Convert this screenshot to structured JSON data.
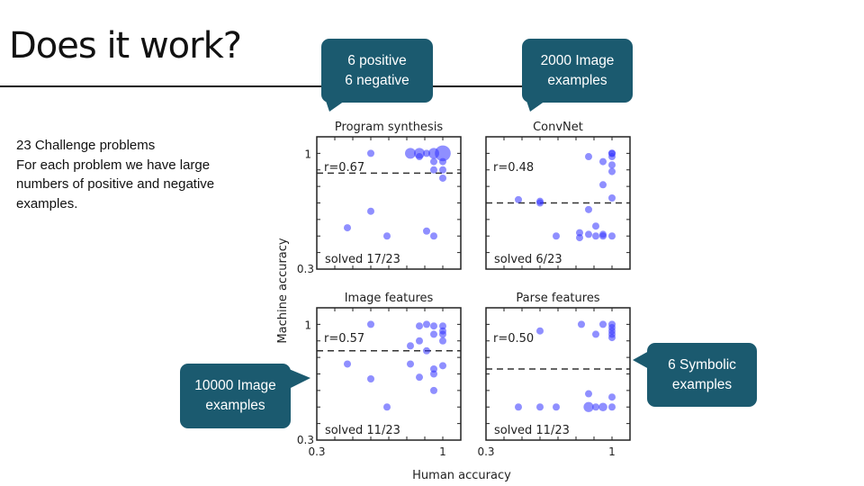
{
  "slide": {
    "title": "Does it work?",
    "body_lines": [
      "23 Challenge problems",
      "For each problem we have large",
      "numbers of positive and negative",
      "examples."
    ]
  },
  "callouts": [
    {
      "lines": [
        "6 positive",
        "6 negative"
      ]
    },
    {
      "lines": [
        "2000 Image",
        "examples"
      ]
    },
    {
      "lines": [
        "10000 Image",
        "examples"
      ]
    },
    {
      "lines": [
        "6 Symbolic",
        "examples"
      ]
    }
  ],
  "colors": {
    "callout": "#1b5a6f",
    "points": "#3333ff",
    "text": "#111111"
  },
  "chart_data": {
    "type": "scatter",
    "xlabel": "Human accuracy",
    "ylabel": "Machine accuracy",
    "xlim": [
      0.3,
      1.1
    ],
    "ylim": [
      0.3,
      1.1
    ],
    "xticks_labels": [
      "0.3",
      "1"
    ],
    "yticks_labels": [
      "1",
      "0.3"
    ],
    "panels": [
      {
        "title": "Program synthesis",
        "r_label": "r=0.67",
        "solved_label": "solved 17/23",
        "threshold": 0.88,
        "points": [
          [
            0.6,
            1,
            1
          ],
          [
            0.82,
            1,
            1.5
          ],
          [
            0.87,
            1,
            1.5
          ],
          [
            0.87,
            0.98,
            1
          ],
          [
            0.91,
            1,
            1
          ],
          [
            0.95,
            1,
            1.5
          ],
          [
            1,
            1,
            2.2
          ],
          [
            0.95,
            0.95,
            1
          ],
          [
            1,
            0.95,
            1
          ],
          [
            0.95,
            0.9,
            1
          ],
          [
            1,
            0.9,
            1
          ],
          [
            1,
            0.85,
            1
          ],
          [
            0.6,
            0.65,
            1
          ],
          [
            0.47,
            0.55,
            1
          ],
          [
            0.69,
            0.5,
            1
          ],
          [
            0.91,
            0.53,
            1
          ],
          [
            0.95,
            0.5,
            1
          ]
        ]
      },
      {
        "title": "ConvNet",
        "r_label": "r=0.48",
        "solved_label": "solved 6/23",
        "threshold": 0.7,
        "points": [
          [
            0.87,
            0.98,
            1
          ],
          [
            1,
            1,
            1
          ],
          [
            1,
            1,
            1
          ],
          [
            1,
            0.98,
            1
          ],
          [
            0.95,
            0.95,
            1
          ],
          [
            1,
            0.93,
            1
          ],
          [
            1,
            0.89,
            1
          ],
          [
            0.95,
            0.81,
            1
          ],
          [
            1,
            0.73,
            1
          ],
          [
            0.48,
            0.72,
            1
          ],
          [
            0.6,
            0.71,
            1
          ],
          [
            0.6,
            0.7,
            1
          ],
          [
            0.87,
            0.66,
            1
          ],
          [
            0.91,
            0.56,
            1
          ],
          [
            0.82,
            0.52,
            1
          ],
          [
            0.82,
            0.49,
            1
          ],
          [
            0.87,
            0.51,
            1
          ],
          [
            0.91,
            0.5,
            1
          ],
          [
            0.95,
            0.51,
            1
          ],
          [
            0.95,
            0.5,
            1
          ],
          [
            1,
            0.5,
            1
          ],
          [
            0.69,
            0.5,
            1
          ]
        ]
      },
      {
        "title": "Image features",
        "r_label": "r=0.57",
        "solved_label": "solved 11/23",
        "threshold": 0.84,
        "points": [
          [
            0.6,
            1,
            1
          ],
          [
            0.87,
            0.99,
            1
          ],
          [
            0.91,
            1,
            1
          ],
          [
            0.95,
            0.99,
            1
          ],
          [
            1,
            0.99,
            1
          ],
          [
            1,
            0.96,
            1
          ],
          [
            1,
            0.94,
            1
          ],
          [
            0.95,
            0.94,
            1
          ],
          [
            1,
            0.9,
            1
          ],
          [
            0.87,
            0.9,
            1
          ],
          [
            0.82,
            0.87,
            1
          ],
          [
            0.91,
            0.84,
            1
          ],
          [
            0.47,
            0.76,
            1
          ],
          [
            0.82,
            0.76,
            1
          ],
          [
            0.95,
            0.73,
            1
          ],
          [
            1,
            0.75,
            1
          ],
          [
            0.95,
            0.7,
            1
          ],
          [
            0.87,
            0.68,
            1
          ],
          [
            0.6,
            0.67,
            1
          ],
          [
            0.95,
            0.6,
            1
          ],
          [
            0.69,
            0.5,
            1
          ]
        ]
      },
      {
        "title": "Parse features",
        "r_label": "r=0.50",
        "solved_label": "solved 11/23",
        "threshold": 0.73,
        "points": [
          [
            0.6,
            0.96,
            1
          ],
          [
            0.83,
            1,
            1
          ],
          [
            0.91,
            0.94,
            1
          ],
          [
            0.95,
            1,
            1
          ],
          [
            1,
            1,
            1
          ],
          [
            1,
            0.98,
            1
          ],
          [
            1,
            0.96,
            1
          ],
          [
            1,
            0.94,
            1
          ],
          [
            1,
            0.92,
            1
          ],
          [
            0.87,
            0.58,
            1
          ],
          [
            1,
            0.56,
            1
          ],
          [
            0.48,
            0.5,
            1
          ],
          [
            0.6,
            0.5,
            1
          ],
          [
            0.69,
            0.5,
            1
          ],
          [
            0.87,
            0.5,
            1.4
          ],
          [
            0.91,
            0.5,
            1
          ],
          [
            0.95,
            0.5,
            1.2
          ],
          [
            1,
            0.5,
            1
          ]
        ]
      }
    ]
  }
}
